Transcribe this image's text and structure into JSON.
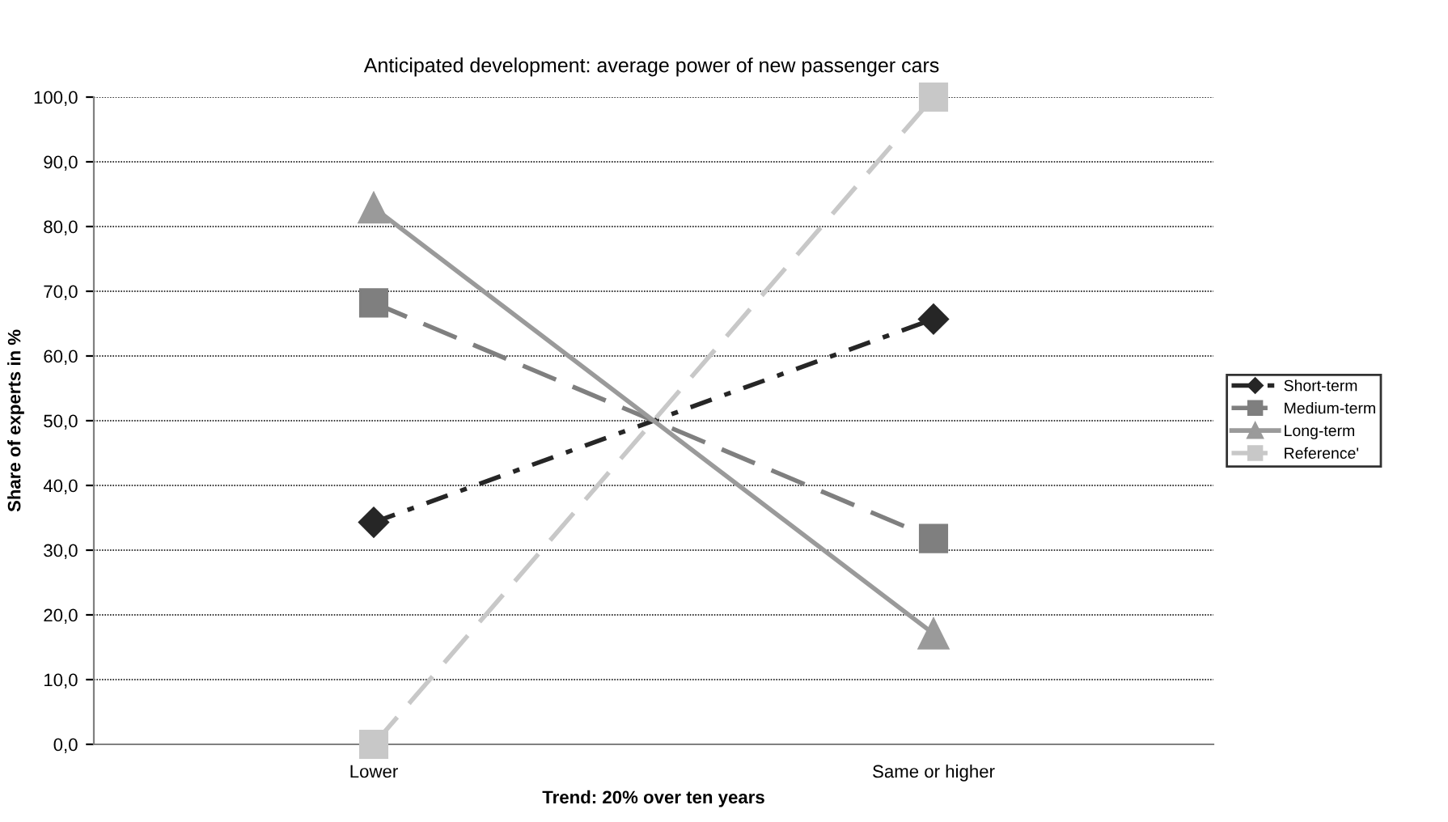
{
  "chart_data": {
    "type": "line",
    "title": "Anticipated development: average power of new passenger cars",
    "xlabel": "Trend: 20% over ten years",
    "ylabel": "Share of experts in %",
    "categories": [
      "Lower",
      "Same or higher"
    ],
    "series": [
      {
        "name": "Short-term",
        "color": "#262626",
        "values": [
          34.3,
          65.7
        ],
        "marker": "diamond",
        "line_style": "dotted"
      },
      {
        "name": "Medium-term",
        "color": "#7f7f7f",
        "values": [
          68.2,
          31.8
        ],
        "marker": "square",
        "line_style": "dashed"
      },
      {
        "name": "Long-term",
        "color": "#9a9a9a",
        "values": [
          82.9,
          17.1
        ],
        "marker": "triangle",
        "line_style": "solid"
      },
      {
        "name": "Reference'",
        "color": "#c8c8c8",
        "values": [
          0,
          100
        ],
        "marker": "square",
        "line_style": "dashed"
      }
    ],
    "ylim": [
      0,
      100
    ],
    "yticks": [
      {
        "value": 0,
        "label": "0,0"
      },
      {
        "value": 10,
        "label": "10,0"
      },
      {
        "value": 20,
        "label": "20,0"
      },
      {
        "value": 30,
        "label": "30,0"
      },
      {
        "value": 40,
        "label": "40,0"
      },
      {
        "value": 50,
        "label": "50,0"
      },
      {
        "value": 60,
        "label": "60,0"
      },
      {
        "value": 70,
        "label": "70,0"
      },
      {
        "value": 80,
        "label": "80,0"
      },
      {
        "value": 90,
        "label": "90,0"
      },
      {
        "value": 100,
        "label": "100,0"
      }
    ],
    "grid": "y",
    "legend": "right"
  }
}
